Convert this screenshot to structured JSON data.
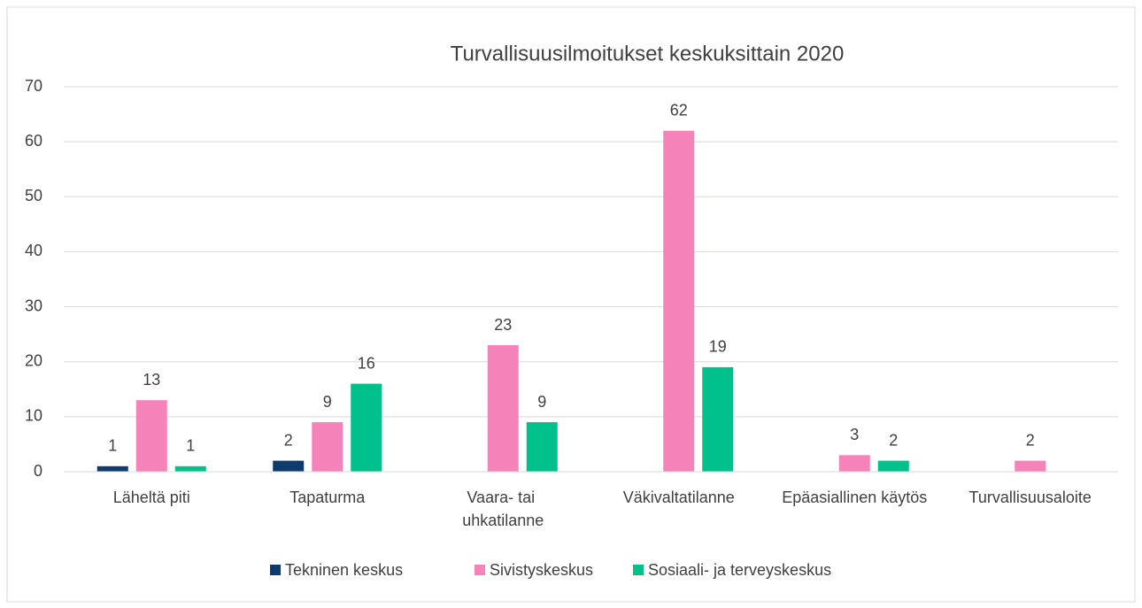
{
  "chart_data": {
    "type": "bar",
    "title": "Turvallisuusilmoitukset keskuksittain 2020",
    "categories": [
      "Läheltä piti",
      "Tapaturma",
      "Vaara- tai uhkatilanne",
      "Väkivaltatilanne",
      "Epäasiallinen käytös",
      "Turvallisuusaloite"
    ],
    "series": [
      {
        "name": "Tekninen keskus",
        "color": "#0e3b6e",
        "values": [
          1,
          2,
          null,
          null,
          null,
          null
        ]
      },
      {
        "name": "Sivistyskeskus",
        "color": "#f582b9",
        "values": [
          13,
          9,
          23,
          62,
          3,
          2
        ]
      },
      {
        "name": "Sosiaali- ja terveyskeskus",
        "color": "#00c08b",
        "values": [
          1,
          16,
          9,
          19,
          2,
          null
        ]
      }
    ],
    "ylim": [
      0,
      70
    ],
    "yticks": [
      0,
      10,
      20,
      30,
      40,
      50,
      60,
      70
    ],
    "grid": true,
    "legend": "bottom"
  }
}
